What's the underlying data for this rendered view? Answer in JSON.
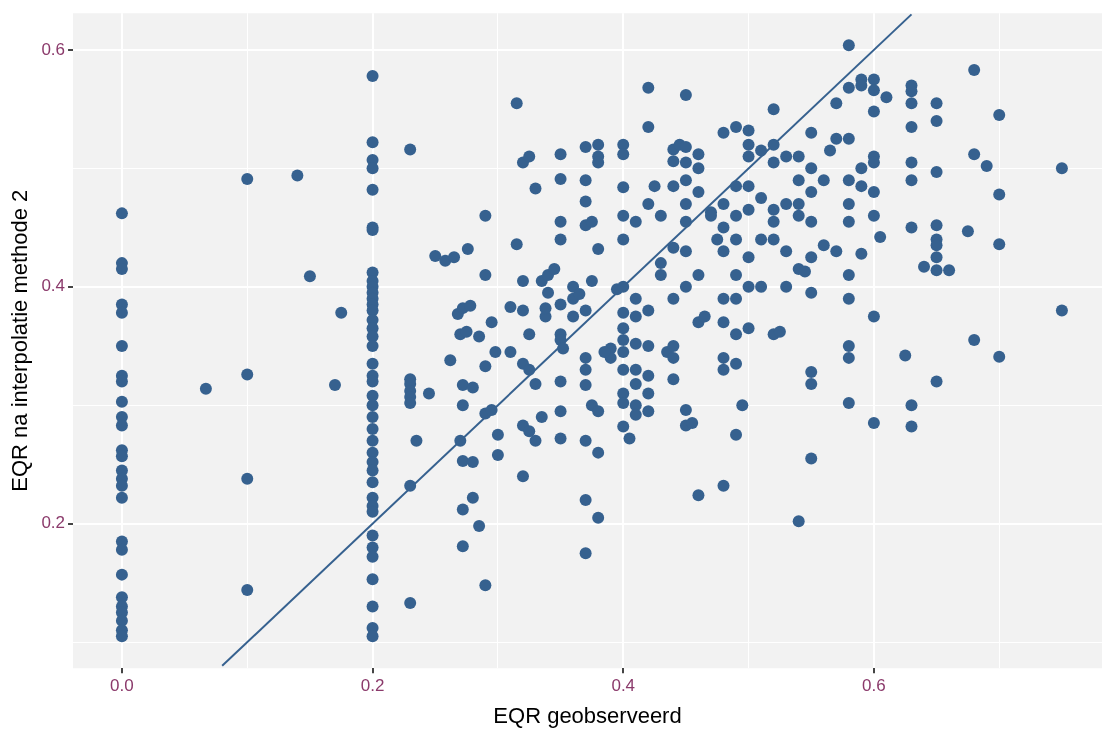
{
  "chart_data": {
    "type": "scatter",
    "xlabel": "EQR geobserveerd",
    "ylabel": "EQR na interpolatie methode 2",
    "xlim": [
      -0.039,
      0.782
    ],
    "ylim": [
      0.078,
      0.631
    ],
    "xticks": [
      {
        "value": 0,
        "label": "0.0"
      },
      {
        "value": 0.1,
        "label": null
      },
      0.2,
      {
        "value": 0.3,
        "label": null
      },
      0.4,
      {
        "value": 0.5,
        "label": null
      },
      0.6,
      {
        "value": 0.7,
        "label": null
      }
    ],
    "yticks": [
      {
        "value": 0.1,
        "label": null
      },
      0.2,
      {
        "value": 0.3,
        "label": null
      },
      0.4,
      {
        "value": 0.5,
        "label": null
      },
      0.6
    ],
    "grid": true,
    "legend": false,
    "series": [
      {
        "marker": "circle",
        "color": "#36618f",
        "x": [
          0,
          0,
          0,
          0,
          0,
          0,
          0,
          0,
          0,
          0,
          0,
          0,
          0,
          0,
          0,
          0,
          0,
          0,
          0,
          0,
          0,
          0,
          0,
          0,
          0,
          0,
          0.067,
          0.1,
          0.1,
          0.1,
          0.1,
          0.14,
          0.15,
          0.175,
          0.17,
          0.2,
          0.2,
          0.2,
          0.2,
          0.2,
          0.2,
          0.2,
          0.2,
          0.2,
          0.2,
          0.2,
          0.2,
          0.2,
          0.2,
          0.2,
          0.2,
          0.2,
          0.2,
          0.2,
          0.2,
          0.2,
          0.2,
          0.2,
          0.2,
          0.2,
          0.2,
          0.2,
          0.2,
          0.2,
          0.2,
          0.2,
          0.2,
          0.2,
          0.2,
          0.2,
          0.2,
          0.2,
          0.2,
          0.2,
          0.2,
          0.23,
          0.23,
          0.23,
          0.23,
          0.23,
          0.23,
          0.23,
          0.23,
          0.235,
          0.245,
          0.25,
          0.258,
          0.265,
          0.262,
          0.268,
          0.272,
          0.278,
          0.276,
          0.27,
          0.275,
          0.272,
          0.28,
          0.285,
          0.272,
          0.27,
          0.272,
          0.28,
          0.272,
          0.28,
          0.272,
          0.285,
          0.29,
          0.29,
          0.295,
          0.29,
          0.298,
          0.29,
          0.295,
          0.3,
          0.29,
          0.3,
          0.31,
          0.31,
          0.315,
          0.32,
          0.315,
          0.325,
          0.33,
          0.32,
          0.32,
          0.325,
          0.32,
          0.325,
          0.33,
          0.32,
          0.325,
          0.335,
          0.32,
          0.33,
          0.338,
          0.34,
          0.338,
          0.335,
          0.34,
          0.35,
          0.35,
          0.35,
          0.35,
          0.35,
          0.35,
          0.35,
          0.352,
          0.35,
          0.35,
          0.35,
          0.345,
          0.36,
          0.36,
          0.36,
          0.365,
          0.37,
          0.37,
          0.37,
          0.37,
          0.375,
          0.37,
          0.37,
          0.37,
          0.37,
          0.375,
          0.38,
          0.37,
          0.38,
          0.37,
          0.38,
          0.37,
          0.375,
          0.38,
          0.38,
          0.38,
          0.38,
          0.39,
          0.39,
          0.385,
          0.395,
          0.4,
          0.4,
          0.4,
          0.4,
          0.4,
          0.4,
          0.4,
          0.4,
          0.4,
          0.4,
          0.4,
          0.4,
          0.4,
          0.4,
          0.405,
          0.41,
          0.41,
          0.41,
          0.41,
          0.41,
          0.41,
          0.41,
          0.41,
          0.42,
          0.42,
          0.42,
          0.42,
          0.42,
          0.42,
          0.42,
          0.42,
          0.425,
          0.43,
          0.43,
          0.43,
          0.435,
          0.44,
          0.44,
          0.44,
          0.445,
          0.44,
          0.44,
          0.44,
          0.44,
          0.44,
          0.45,
          0.45,
          0.45,
          0.45,
          0.45,
          0.45,
          0.45,
          0.45,
          0.45,
          0.45,
          0.455,
          0.46,
          0.46,
          0.46,
          0.46,
          0.46,
          0.465,
          0.46,
          0.47,
          0.47,
          0.475,
          0.48,
          0.48,
          0.48,
          0.48,
          0.48,
          0.48,
          0.48,
          0.48,
          0.48,
          0.49,
          0.49,
          0.49,
          0.49,
          0.49,
          0.49,
          0.49,
          0.49,
          0.49,
          0.495,
          0.5,
          0.5,
          0.5,
          0.5,
          0.5,
          0.5,
          0.5,
          0.5,
          0.51,
          0.51,
          0.51,
          0.51,
          0.52,
          0.52,
          0.52,
          0.52,
          0.52,
          0.52,
          0.52,
          0.525,
          0.53,
          0.53,
          0.53,
          0.53,
          0.54,
          0.54,
          0.54,
          0.54,
          0.54,
          0.54,
          0.545,
          0.55,
          0.55,
          0.55,
          0.55,
          0.55,
          0.55,
          0.55,
          0.55,
          0.55,
          0.56,
          0.56,
          0.565,
          0.57,
          0.57,
          0.57,
          0.58,
          0.58,
          0.58,
          0.58,
          0.58,
          0.58,
          0.58,
          0.58,
          0.58,
          0.58,
          0.58,
          0.59,
          0.59,
          0.59,
          0.59,
          0.59,
          0.6,
          0.6,
          0.6,
          0.6,
          0.6,
          0.6,
          0.6,
          0.6,
          0.6,
          0.61,
          0.605,
          0.63,
          0.63,
          0.63,
          0.63,
          0.63,
          0.63,
          0.63,
          0.63,
          0.63,
          0.625,
          0.64,
          0.65,
          0.65,
          0.65,
          0.65,
          0.65,
          0.65,
          0.65,
          0.65,
          0.65,
          0.66,
          0.68,
          0.68,
          0.68,
          0.675,
          0.69,
          0.7,
          0.7,
          0.7,
          0.7,
          0.75,
          0.75
        ],
        "values": [
          0.462,
          0.42,
          0.415,
          0.385,
          0.378,
          0.35,
          0.325,
          0.32,
          0.303,
          0.29,
          0.283,
          0.262,
          0.257,
          0.245,
          0.238,
          0.232,
          0.222,
          0.185,
          0.178,
          0.157,
          0.138,
          0.13,
          0.125,
          0.118,
          0.11,
          0.105,
          0.314,
          0.491,
          0.326,
          0.238,
          0.144,
          0.494,
          0.409,
          0.378,
          0.317,
          0.578,
          0.522,
          0.507,
          0.5,
          0.482,
          0.45,
          0.448,
          0.412,
          0.405,
          0.4,
          0.395,
          0.39,
          0.385,
          0.38,
          0.372,
          0.365,
          0.358,
          0.35,
          0.335,
          0.325,
          0.32,
          0.308,
          0.3,
          0.29,
          0.28,
          0.27,
          0.26,
          0.252,
          0.245,
          0.235,
          0.222,
          0.215,
          0.21,
          0.19,
          0.18,
          0.172,
          0.153,
          0.13,
          0.112,
          0.105,
          0.516,
          0.322,
          0.318,
          0.312,
          0.307,
          0.302,
          0.232,
          0.133,
          0.27,
          0.31,
          0.426,
          0.422,
          0.425,
          0.338,
          0.377,
          0.382,
          0.384,
          0.432,
          0.36,
          0.362,
          0.317,
          0.315,
          0.358,
          0.3,
          0.27,
          0.253,
          0.252,
          0.212,
          0.222,
          0.181,
          0.198,
          0.41,
          0.46,
          0.37,
          0.333,
          0.345,
          0.293,
          0.296,
          0.258,
          0.148,
          0.275,
          0.345,
          0.383,
          0.436,
          0.505,
          0.555,
          0.51,
          0.483,
          0.405,
          0.38,
          0.36,
          0.335,
          0.33,
          0.318,
          0.283,
          0.278,
          0.29,
          0.24,
          0.27,
          0.375,
          0.395,
          0.382,
          0.405,
          0.41,
          0.491,
          0.512,
          0.455,
          0.44,
          0.385,
          0.36,
          0.355,
          0.348,
          0.32,
          0.295,
          0.272,
          0.415,
          0.4,
          0.39,
          0.375,
          0.394,
          0.518,
          0.49,
          0.472,
          0.452,
          0.405,
          0.38,
          0.34,
          0.33,
          0.317,
          0.3,
          0.295,
          0.27,
          0.26,
          0.22,
          0.205,
          0.175,
          0.455,
          0.52,
          0.51,
          0.505,
          0.432,
          0.348,
          0.34,
          0.345,
          0.398,
          0.52,
          0.512,
          0.484,
          0.46,
          0.44,
          0.4,
          0.378,
          0.365,
          0.355,
          0.345,
          0.33,
          0.31,
          0.302,
          0.282,
          0.272,
          0.455,
          0.39,
          0.375,
          0.352,
          0.33,
          0.318,
          0.3,
          0.292,
          0.568,
          0.535,
          0.47,
          0.38,
          0.35,
          0.325,
          0.31,
          0.295,
          0.485,
          0.46,
          0.42,
          0.41,
          0.345,
          0.516,
          0.506,
          0.485,
          0.52,
          0.433,
          0.39,
          0.35,
          0.34,
          0.322,
          0.562,
          0.518,
          0.505,
          0.49,
          0.47,
          0.455,
          0.43,
          0.4,
          0.296,
          0.283,
          0.285,
          0.512,
          0.5,
          0.48,
          0.41,
          0.37,
          0.375,
          0.224,
          0.463,
          0.46,
          0.44,
          0.53,
          0.47,
          0.45,
          0.43,
          0.39,
          0.37,
          0.34,
          0.33,
          0.232,
          0.535,
          0.485,
          0.46,
          0.44,
          0.41,
          0.39,
          0.36,
          0.335,
          0.275,
          0.3,
          0.532,
          0.52,
          0.51,
          0.485,
          0.465,
          0.425,
          0.4,
          0.365,
          0.515,
          0.475,
          0.44,
          0.4,
          0.55,
          0.52,
          0.505,
          0.465,
          0.455,
          0.44,
          0.36,
          0.362,
          0.51,
          0.47,
          0.43,
          0.4,
          0.51,
          0.49,
          0.47,
          0.46,
          0.415,
          0.202,
          0.413,
          0.53,
          0.5,
          0.48,
          0.455,
          0.425,
          0.395,
          0.328,
          0.318,
          0.255,
          0.49,
          0.435,
          0.515,
          0.555,
          0.525,
          0.43,
          0.604,
          0.568,
          0.525,
          0.49,
          0.47,
          0.455,
          0.41,
          0.39,
          0.35,
          0.34,
          0.302,
          0.575,
          0.57,
          0.5,
          0.485,
          0.428,
          0.575,
          0.566,
          0.548,
          0.51,
          0.505,
          0.48,
          0.46,
          0.375,
          0.285,
          0.56,
          0.442,
          0.57,
          0.565,
          0.555,
          0.535,
          0.505,
          0.49,
          0.45,
          0.3,
          0.282,
          0.342,
          0.417,
          0.555,
          0.54,
          0.497,
          0.452,
          0.44,
          0.435,
          0.425,
          0.414,
          0.32,
          0.414,
          0.583,
          0.512,
          0.355,
          0.447,
          0.502,
          0.545,
          0.478,
          0.436,
          0.341,
          0.5,
          0.38
        ]
      },
      {
        "type": "line",
        "marker": "none",
        "line_style": "solid",
        "color": "#36618f",
        "x": [
          0.08,
          0.63
        ],
        "values": [
          0.08,
          0.63
        ]
      }
    ]
  }
}
